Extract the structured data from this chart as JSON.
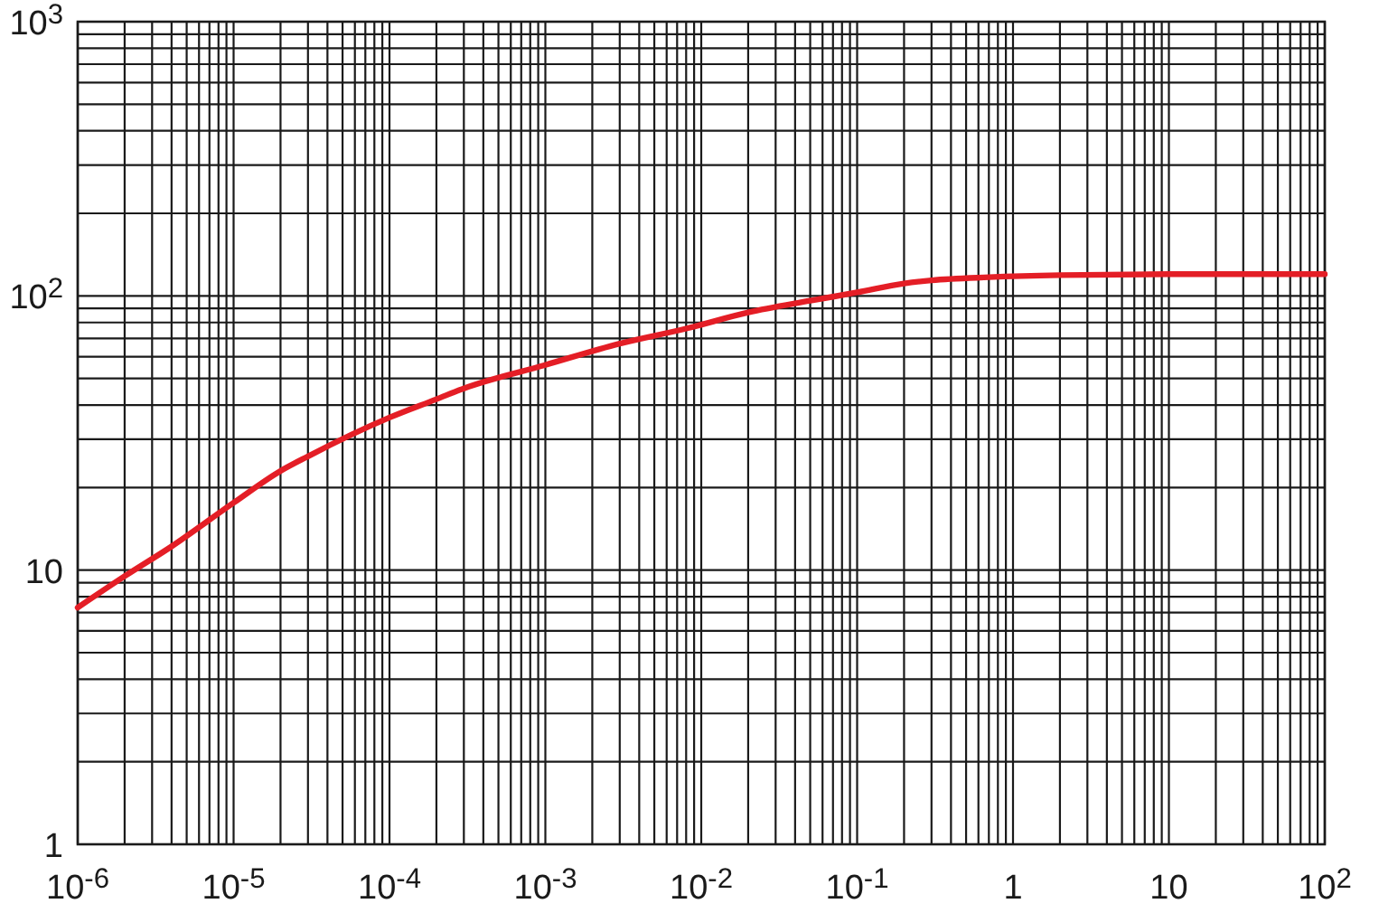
{
  "chart_data": {
    "type": "line",
    "log": "xy",
    "grid": true,
    "color": "#e41e26",
    "x": [
      1e-06,
      2e-06,
      4e-06,
      1e-05,
      2e-05,
      3e-05,
      0.0001,
      0.0002,
      0.0003,
      0.001,
      0.003,
      0.008,
      0.02,
      0.05,
      0.1,
      0.2,
      0.3,
      0.7,
      2,
      10,
      100
    ],
    "values": [
      7.3,
      9.5,
      12.2,
      17.6,
      23,
      26,
      36,
      42,
      46,
      56,
      67,
      76,
      87,
      96,
      103,
      111,
      114,
      117,
      119,
      120,
      120
    ],
    "xlim": [
      1e-06,
      100
    ],
    "ylim": [
      1,
      1000
    ],
    "xticks": [
      {
        "value": 1e-06,
        "label": "10$^{-6}$"
      },
      {
        "value": 2e-06,
        "label": null
      },
      {
        "value": 3e-06,
        "label": null
      },
      {
        "value": 4e-06,
        "label": null
      },
      {
        "value": 5e-06,
        "label": null
      },
      {
        "value": 6e-06,
        "label": null
      },
      {
        "value": 7e-06,
        "label": null
      },
      {
        "value": 8e-06,
        "label": null
      },
      {
        "value": 9e-06,
        "label": null
      },
      {
        "value": 1e-05,
        "label": "10$^{-5}$"
      },
      {
        "value": 2e-05,
        "label": null
      },
      {
        "value": 3e-05,
        "label": null
      },
      {
        "value": 4e-05,
        "label": null
      },
      {
        "value": 5e-05,
        "label": null
      },
      {
        "value": 6e-05,
        "label": null
      },
      {
        "value": 7e-05,
        "label": null
      },
      {
        "value": 8e-05,
        "label": null
      },
      {
        "value": 9e-05,
        "label": null
      },
      {
        "value": 0.0001,
        "label": "10$^{-4}$"
      },
      {
        "value": 0.0002,
        "label": null
      },
      {
        "value": 0.0003,
        "label": null
      },
      {
        "value": 0.0004,
        "label": null
      },
      {
        "value": 0.0005,
        "label": null
      },
      {
        "value": 0.0006,
        "label": null
      },
      {
        "value": 0.0007,
        "label": null
      },
      {
        "value": 0.0008,
        "label": null
      },
      {
        "value": 0.0009,
        "label": null
      },
      {
        "value": 0.001,
        "label": "10$^{-3}$"
      },
      {
        "value": 0.002,
        "label": null
      },
      {
        "value": 0.003,
        "label": null
      },
      {
        "value": 0.004,
        "label": null
      },
      {
        "value": 0.005,
        "label": null
      },
      {
        "value": 0.006,
        "label": null
      },
      {
        "value": 0.007,
        "label": null
      },
      {
        "value": 0.008,
        "label": null
      },
      {
        "value": 0.009,
        "label": null
      },
      {
        "value": 0.01,
        "label": "10$^{-2}$"
      },
      {
        "value": 0.02,
        "label": null
      },
      {
        "value": 0.03,
        "label": null
      },
      {
        "value": 0.04,
        "label": null
      },
      {
        "value": 0.05,
        "label": null
      },
      {
        "value": 0.06,
        "label": null
      },
      {
        "value": 0.07,
        "label": null
      },
      {
        "value": 0.08,
        "label": null
      },
      {
        "value": 0.09,
        "label": null
      },
      {
        "value": 0.1,
        "label": "10$^{-1}$"
      },
      {
        "value": 0.2,
        "label": null
      },
      {
        "value": 0.3,
        "label": null
      },
      {
        "value": 0.4,
        "label": null
      },
      {
        "value": 0.5,
        "label": null
      },
      {
        "value": 0.6,
        "label": null
      },
      {
        "value": 0.7,
        "label": null
      },
      {
        "value": 0.8,
        "label": null
      },
      {
        "value": 0.9,
        "label": null
      },
      1,
      {
        "value": 2,
        "label": null
      },
      {
        "value": 3,
        "label": null
      },
      {
        "value": 4,
        "label": null
      },
      {
        "value": 5,
        "label": null
      },
      {
        "value": 6,
        "label": null
      },
      {
        "value": 7,
        "label": null
      },
      {
        "value": 8,
        "label": null
      },
      {
        "value": 9,
        "label": null
      },
      10,
      {
        "value": 20,
        "label": null
      },
      {
        "value": 30,
        "label": null
      },
      {
        "value": 40,
        "label": null
      },
      {
        "value": 50,
        "label": null
      },
      {
        "value": 60,
        "label": null
      },
      {
        "value": 70,
        "label": null
      },
      {
        "value": 80,
        "label": null
      },
      {
        "value": 90,
        "label": null
      },
      {
        "value": 100,
        "label": "10$^{2}$"
      }
    ],
    "yticks": [
      1,
      {
        "value": 2,
        "label": null
      },
      {
        "value": 3,
        "label": null
      },
      {
        "value": 4,
        "label": null
      },
      {
        "value": 5,
        "label": null
      },
      {
        "value": 6,
        "label": null
      },
      {
        "value": 7,
        "label": null
      },
      {
        "value": 8,
        "label": null
      },
      {
        "value": 9,
        "label": null
      },
      10,
      {
        "value": 20,
        "label": null
      },
      {
        "value": 30,
        "label": null
      },
      {
        "value": 40,
        "label": null
      },
      {
        "value": 50,
        "label": null
      },
      {
        "value": 60,
        "label": null
      },
      {
        "value": 70,
        "label": null
      },
      {
        "value": 80,
        "label": null
      },
      {
        "value": 90,
        "label": null
      },
      {
        "value": 100,
        "label": "10$^{2}$"
      },
      {
        "value": 200,
        "label": null
      },
      {
        "value": 300,
        "label": null
      },
      {
        "value": 400,
        "label": null
      },
      {
        "value": 500,
        "label": null
      },
      {
        "value": 600,
        "label": null
      },
      {
        "value": 700,
        "label": null
      },
      {
        "value": 800,
        "label": null
      },
      {
        "value": 900,
        "label": null
      },
      {
        "value": 1000,
        "label": "10$^{3}$"
      }
    ]
  }
}
